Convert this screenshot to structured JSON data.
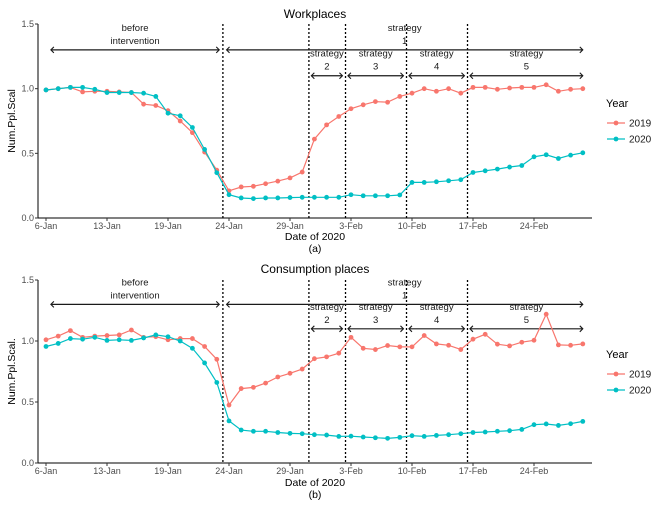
{
  "chart_data": [
    {
      "type": "line",
      "title": "Workplaces",
      "caption": "(a)",
      "xlabel": "Date of 2020",
      "ylabel": "Num.Ppl.Scal",
      "ylim": [
        0,
        1.5
      ],
      "yticks": [
        "0.0",
        "0.5",
        "1.0",
        "1.5"
      ],
      "xticks": [
        "6-Jan",
        "13-Jan",
        "19-Jan",
        "24-Jan",
        "29-Jan",
        "3-Feb",
        "10-Feb",
        "17-Feb",
        "24-Feb"
      ],
      "legend": {
        "title": "Year",
        "placement": "right"
      },
      "annotations": {
        "before_top": "before",
        "before_bottom": "intervention",
        "s1_top": "strategy",
        "s1_bottom": "1",
        "s2_top": "strategy",
        "s2_bottom": "2",
        "s3_top": "strategy",
        "s3_bottom": "3",
        "s4_top": "strategy",
        "s4_bottom": "4",
        "s5_top": "strategy",
        "s5_bottom": "5"
      },
      "series": [
        {
          "name": "2019",
          "color": "#F8766D",
          "values": [
            0.99,
            1.0,
            1.01,
            0.975,
            0.98,
            0.98,
            0.975,
            0.97,
            0.88,
            0.87,
            0.83,
            0.75,
            0.66,
            0.51,
            0.37,
            0.21,
            0.24,
            0.245,
            0.265,
            0.285,
            0.31,
            0.355,
            0.61,
            0.72,
            0.785,
            0.845,
            0.875,
            0.9,
            0.895,
            0.94,
            0.965,
            1.0,
            0.98,
            1.0,
            0.965,
            1.01,
            1.01,
            0.995,
            1.005,
            1.01,
            1.01,
            1.03,
            0.98,
            0.995,
            1.0
          ]
        },
        {
          "name": "2020",
          "color": "#00BFC4",
          "values": [
            0.99,
            1.0,
            1.01,
            1.01,
            0.995,
            0.97,
            0.97,
            0.97,
            0.965,
            0.94,
            0.81,
            0.79,
            0.7,
            0.53,
            0.35,
            0.18,
            0.155,
            0.15,
            0.155,
            0.155,
            0.158,
            0.16,
            0.16,
            0.16,
            0.16,
            0.18,
            0.172,
            0.172,
            0.172,
            0.178,
            0.275,
            0.275,
            0.28,
            0.288,
            0.296,
            0.352,
            0.365,
            0.378,
            0.394,
            0.406,
            0.473,
            0.489,
            0.46,
            0.486,
            0.504
          ]
        }
      ]
    },
    {
      "type": "line",
      "title": "Consumption places",
      "caption": "(b)",
      "xlabel": "Date of 2020",
      "ylabel": "Num.Ppl.Scal.",
      "ylim": [
        0,
        1.5
      ],
      "yticks": [
        "0.0",
        "0.5",
        "1.0",
        "1.5"
      ],
      "xticks": [
        "6-Jan",
        "13-Jan",
        "19-Jan",
        "24-Jan",
        "29-Jan",
        "3-Feb",
        "10-Feb",
        "17-Feb",
        "24-Feb"
      ],
      "legend": {
        "title": "Year",
        "placement": "right"
      },
      "annotations": {
        "before_top": "before",
        "before_bottom": "intervention",
        "s1_top": "strategy",
        "s1_bottom": "1",
        "s2_top": "strategy",
        "s2_bottom": "2",
        "s3_top": "strategy",
        "s3_bottom": "3",
        "s4_top": "strategy",
        "s4_bottom": "4",
        "s5_top": "strategy",
        "s5_bottom": "5"
      },
      "series": [
        {
          "name": "2019",
          "color": "#F8766D",
          "values": [
            1.01,
            1.04,
            1.085,
            1.03,
            1.04,
            1.045,
            1.05,
            1.09,
            1.03,
            1.035,
            1.01,
            1.02,
            1.02,
            0.955,
            0.85,
            0.475,
            0.61,
            0.62,
            0.655,
            0.705,
            0.735,
            0.77,
            0.855,
            0.87,
            0.9,
            1.03,
            0.94,
            0.93,
            0.963,
            0.952,
            0.952,
            1.045,
            0.976,
            0.965,
            0.93,
            1.015,
            1.055,
            0.974,
            0.96,
            0.99,
            1.006,
            1.22,
            0.968,
            0.965,
            0.976
          ]
        },
        {
          "name": "2020",
          "color": "#00BFC4",
          "values": [
            0.955,
            0.98,
            1.02,
            1.015,
            1.03,
            1.005,
            1.01,
            1.005,
            1.025,
            1.05,
            1.035,
            1.0,
            0.94,
            0.82,
            0.66,
            0.345,
            0.27,
            0.26,
            0.26,
            0.25,
            0.243,
            0.24,
            0.232,
            0.229,
            0.218,
            0.22,
            0.213,
            0.207,
            0.202,
            0.21,
            0.224,
            0.218,
            0.226,
            0.232,
            0.24,
            0.25,
            0.254,
            0.26,
            0.265,
            0.275,
            0.314,
            0.32,
            0.308,
            0.322,
            0.341
          ]
        }
      ]
    }
  ]
}
